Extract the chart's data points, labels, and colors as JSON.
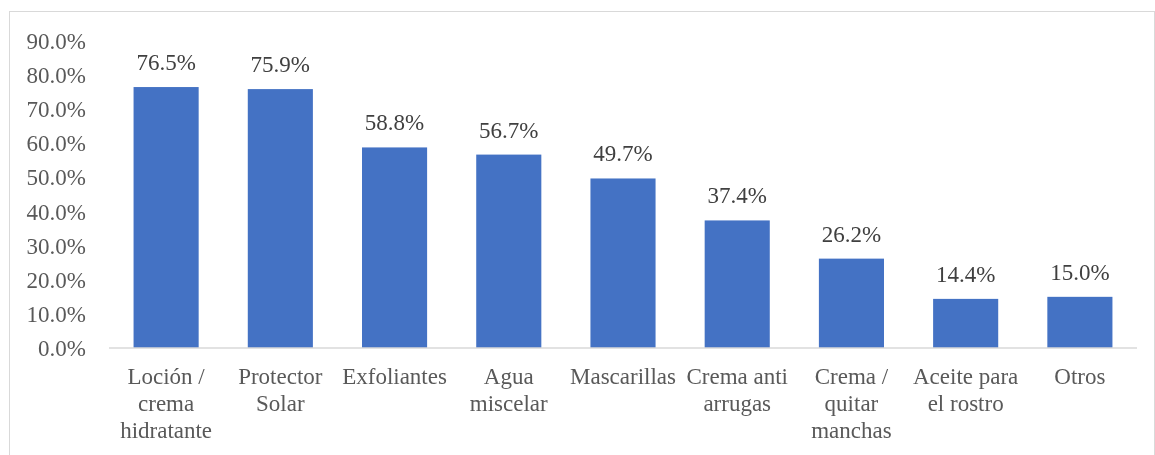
{
  "chart_data": {
    "type": "bar",
    "categories": [
      "Loción / crema hidratante",
      "Protector Solar",
      "Exfoliantes",
      "Agua miscelar",
      "Mascarillas",
      "Crema anti arrugas",
      "Crema / quitar manchas",
      "Aceite para el rostro",
      "Otros"
    ],
    "values": [
      76.5,
      75.9,
      58.8,
      56.7,
      49.7,
      37.4,
      26.2,
      14.4,
      15.0
    ],
    "value_labels": [
      "76.5%",
      "75.9%",
      "58.8%",
      "56.7%",
      "49.7%",
      "37.4%",
      "26.2%",
      "14.4%",
      "15.0%"
    ],
    "color": "#4472c4",
    "ylim": [
      0,
      90
    ],
    "yticks": [
      {
        "value": 0,
        "label": "0.0%"
      },
      {
        "value": 10,
        "label": "10.0%"
      },
      {
        "value": 20,
        "label": "20.0%"
      },
      {
        "value": 30,
        "label": "30.0%"
      },
      {
        "value": 40,
        "label": "40.0%"
      },
      {
        "value": 50,
        "label": "50.0%"
      },
      {
        "value": 60,
        "label": "60.0%"
      },
      {
        "value": 70,
        "label": "70.0%"
      },
      {
        "value": 80,
        "label": "80.0%"
      },
      {
        "value": 90,
        "label": "90.0%"
      }
    ]
  }
}
